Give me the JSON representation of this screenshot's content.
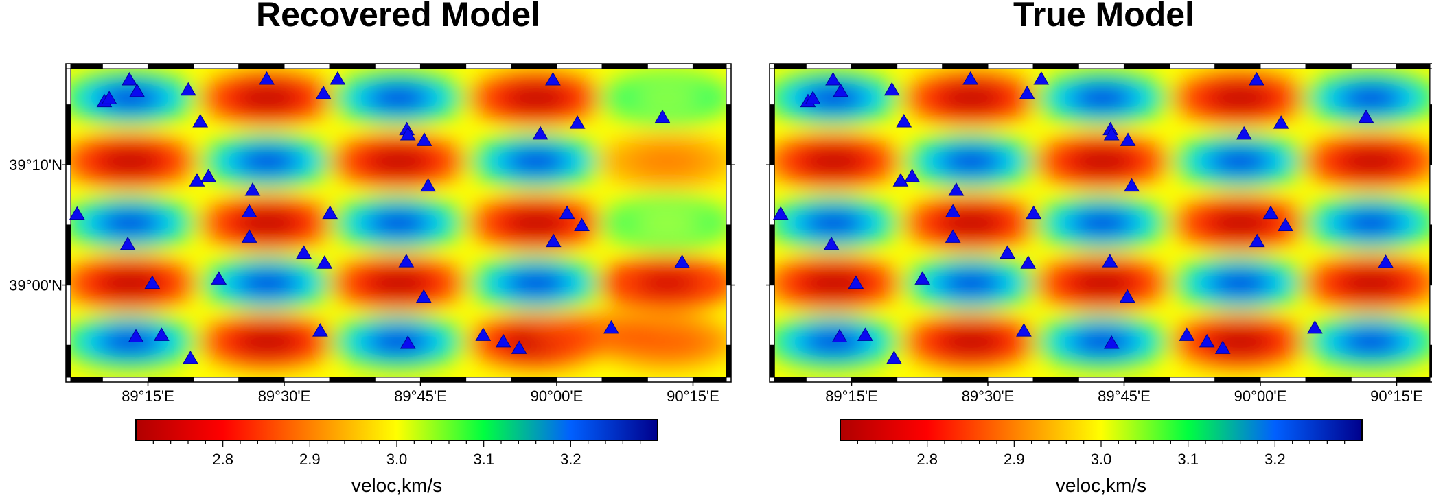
{
  "panels": [
    {
      "id": "recovered",
      "title": "Recovered Model",
      "show_lat_labels": true,
      "east_anomaly": true
    },
    {
      "id": "true",
      "title": "True Model",
      "show_lat_labels": false,
      "east_anomaly": false
    }
  ],
  "map": {
    "lon_range": [
      89.1083,
      90.3111
    ],
    "lat_range": [
      38.8722,
      39.3
    ],
    "lon_ticks": [
      {
        "value": 89.25,
        "label": "89°15'E"
      },
      {
        "value": 89.5,
        "label": "89°30'E"
      },
      {
        "value": 89.75,
        "label": "89°45'E"
      },
      {
        "value": 90.0,
        "label": "90°00'E"
      },
      {
        "value": 90.25,
        "label": "90°15'E"
      }
    ],
    "lat_ticks": [
      {
        "value": 39.0,
        "label": "39°00'N"
      },
      {
        "value": 39.1667,
        "label": "39°10'N"
      }
    ]
  },
  "colorbar": {
    "label": "veloc,km/s",
    "range": [
      2.7,
      3.3
    ],
    "ticks": [
      2.8,
      2.9,
      3.0,
      3.1,
      3.2
    ],
    "tick_labels": [
      "2.8",
      "2.9",
      "3.0",
      "3.1",
      "3.2"
    ],
    "colors": [
      "#b00000",
      "#ff0000",
      "#ff8000",
      "#ffff00",
      "#00ff40",
      "#0060ff",
      "#00008c"
    ]
  },
  "stations": [
    [
      89.216,
      39.284
    ],
    [
      89.23,
      39.268
    ],
    [
      89.17,
      39.254
    ],
    [
      89.179,
      39.258
    ],
    [
      89.324,
      39.27
    ],
    [
      89.346,
      39.226
    ],
    [
      89.34,
      39.144
    ],
    [
      89.361,
      39.15
    ],
    [
      89.12,
      39.098
    ],
    [
      89.213,
      39.056
    ],
    [
      89.258,
      39.002
    ],
    [
      89.228,
      38.928
    ],
    [
      89.275,
      38.93
    ],
    [
      89.328,
      38.898
    ],
    [
      89.38,
      39.008
    ],
    [
      89.436,
      39.066
    ],
    [
      89.436,
      39.101
    ],
    [
      89.442,
      39.131
    ],
    [
      89.468,
      39.285
    ],
    [
      89.572,
      39.265
    ],
    [
      89.598,
      39.285
    ],
    [
      89.584,
      39.099
    ],
    [
      89.536,
      39.044
    ],
    [
      89.574,
      39.03
    ],
    [
      89.566,
      38.936
    ],
    [
      89.725,
      39.215
    ],
    [
      89.727,
      39.208
    ],
    [
      89.757,
      39.2
    ],
    [
      89.764,
      39.137
    ],
    [
      89.724,
      39.032
    ],
    [
      89.756,
      38.983
    ],
    [
      89.727,
      38.919
    ],
    [
      89.865,
      38.93
    ],
    [
      89.902,
      38.921
    ],
    [
      89.931,
      38.912
    ],
    [
      89.97,
      39.209
    ],
    [
      89.993,
      39.284
    ],
    [
      90.038,
      39.224
    ],
    [
      90.019,
      39.099
    ],
    [
      89.994,
      39.06
    ],
    [
      90.046,
      39.082
    ],
    [
      90.1,
      38.94
    ],
    [
      90.194,
      39.232
    ],
    [
      90.23,
      39.031
    ]
  ]
}
